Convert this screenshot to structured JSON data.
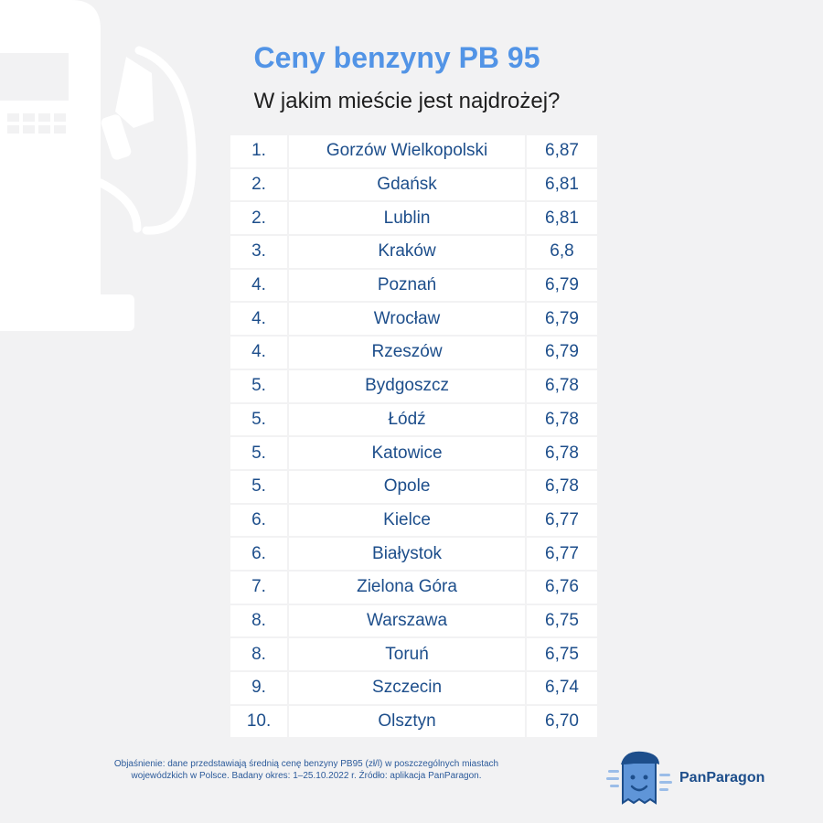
{
  "header": {
    "title": "Ceny benzyny PB 95",
    "subtitle": "W jakim mieście jest najdrożej?"
  },
  "ranking": [
    {
      "rank": "1.",
      "city": "Gorzów Wielkopolski",
      "price": "6,87"
    },
    {
      "rank": "2.",
      "city": "Gdańsk",
      "price": "6,81"
    },
    {
      "rank": "2.",
      "city": "Lublin",
      "price": "6,81"
    },
    {
      "rank": "3.",
      "city": "Kraków",
      "price": "6,8"
    },
    {
      "rank": "4.",
      "city": "Poznań",
      "price": "6,79"
    },
    {
      "rank": "4.",
      "city": "Wrocław",
      "price": "6,79"
    },
    {
      "rank": "4.",
      "city": "Rzeszów",
      "price": "6,79"
    },
    {
      "rank": "5.",
      "city": "Bydgoszcz",
      "price": "6,78"
    },
    {
      "rank": "5.",
      "city": "Łódź",
      "price": "6,78"
    },
    {
      "rank": "5.",
      "city": "Katowice",
      "price": "6,78"
    },
    {
      "rank": "5.",
      "city": "Opole",
      "price": "6,78"
    },
    {
      "rank": "6.",
      "city": "Kielce",
      "price": "6,77"
    },
    {
      "rank": "6.",
      "city": "Białystok",
      "price": "6,77"
    },
    {
      "rank": "7.",
      "city": "Zielona Góra",
      "price": "6,76"
    },
    {
      "rank": "8.",
      "city": "Warszawa",
      "price": "6,75"
    },
    {
      "rank": "8.",
      "city": "Toruń",
      "price": "6,75"
    },
    {
      "rank": "9.",
      "city": "Szczecin",
      "price": "6,74"
    },
    {
      "rank": "10.",
      "city": "Olsztyn",
      "price": "6,70"
    }
  ],
  "footer": {
    "note": "Objaśnienie: dane przedstawiają średnią cenę benzyny PB95 (zł/l) w poszczególnych miastach wojewódzkich w Polsce. Badany okres: 1–25.10.2022 r. Źródło: aplikacja PanParagon.",
    "brand_name": "PanParagon",
    "brand_icon": "panparagon-mascot-icon"
  },
  "decor": {
    "background_icon": "fuel-pump-icon"
  },
  "colors": {
    "background": "#f2f2f3",
    "title": "#5294e6",
    "table_text": "#1d4e8b",
    "cell_bg": "#ffffff"
  }
}
